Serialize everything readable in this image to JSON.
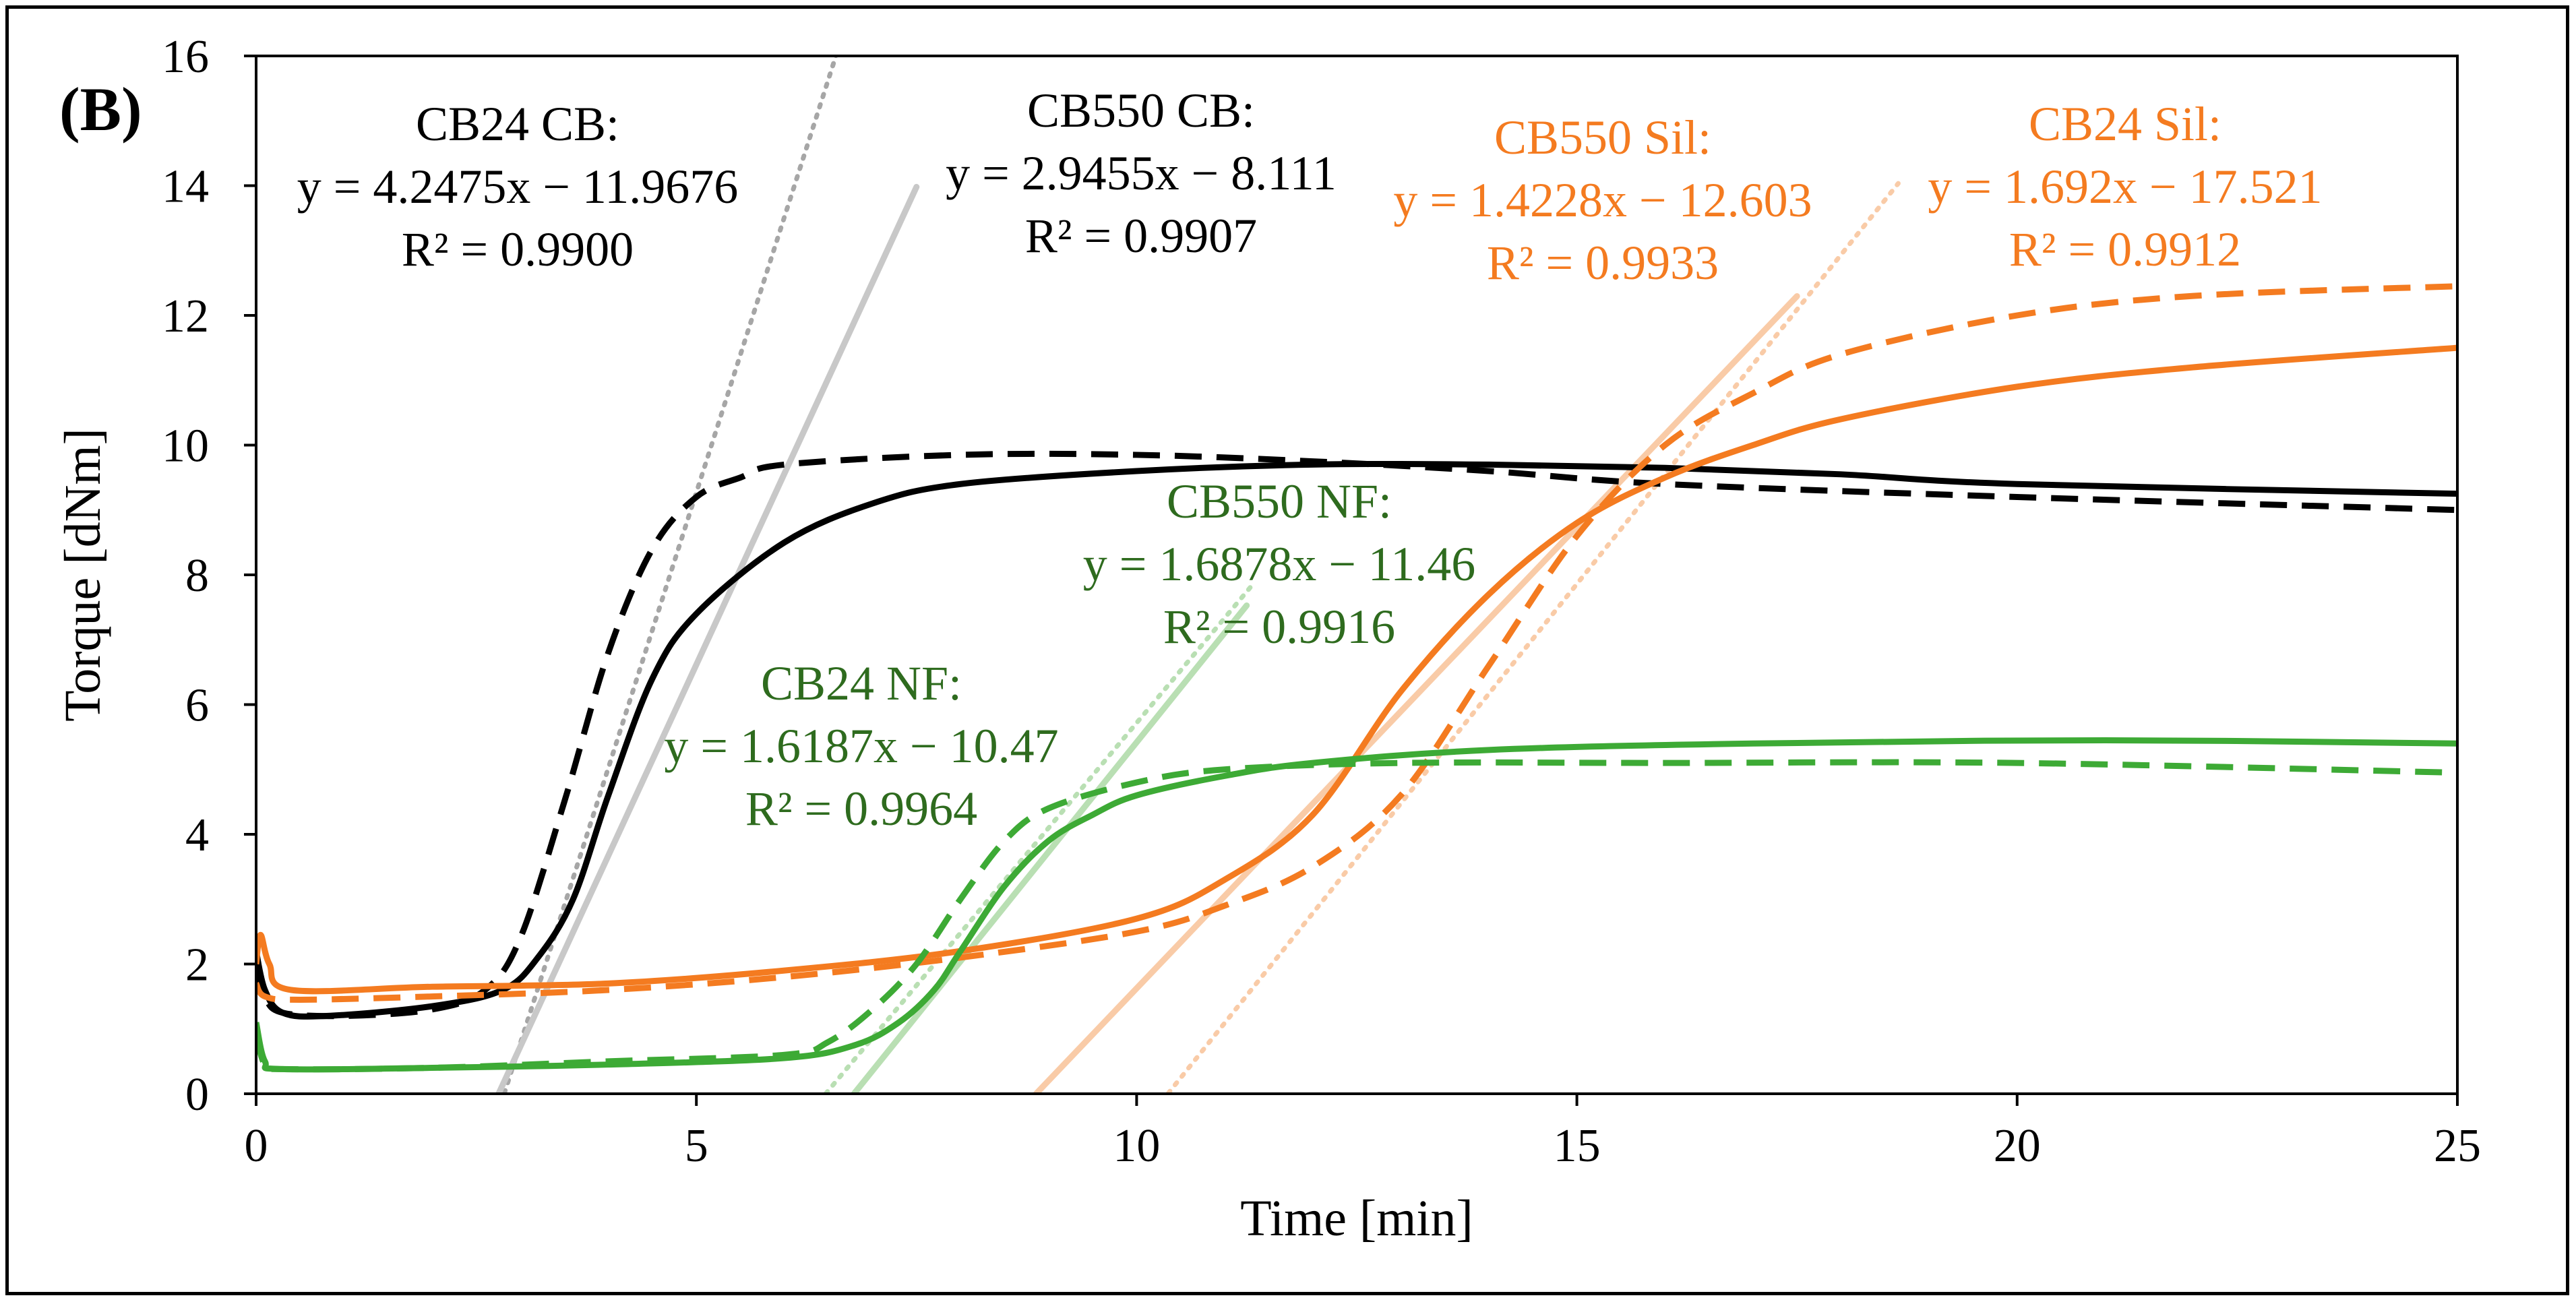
{
  "chart_data": {
    "type": "line",
    "panel_label": "(B)",
    "xlabel": "Time [min]",
    "ylabel": "Torque [dNm]",
    "xlim": [
      0,
      25
    ],
    "ylim": [
      0,
      16
    ],
    "xticks": [
      0,
      5,
      10,
      15,
      20,
      25
    ],
    "yticks": [
      0,
      2,
      4,
      6,
      8,
      10,
      12,
      14,
      16
    ],
    "grid": false,
    "legend": "none",
    "colors": {
      "black": "#000000",
      "orange": "#F47B20",
      "green": "#3DAA35",
      "annot_green": "#2E6B1E",
      "gray": "#A6A6A6",
      "gray_light": "#C8C8C8",
      "orange_light": "#F9CBA7",
      "green_light": "#B9DFB3"
    },
    "series": [
      {
        "color": "#000000",
        "dash": "solid",
        "points": [
          [
            0,
            2.2
          ],
          [
            0.1,
            1.6
          ],
          [
            0.3,
            1.25
          ],
          [
            0.8,
            1.2
          ],
          [
            2,
            1.35
          ],
          [
            2.8,
            1.6
          ],
          [
            3.2,
            2.1
          ],
          [
            3.6,
            3.0
          ],
          [
            4.0,
            4.6
          ],
          [
            4.5,
            6.4
          ],
          [
            5.0,
            7.4
          ],
          [
            6.0,
            8.5
          ],
          [
            7.0,
            9.1
          ],
          [
            8.0,
            9.4
          ],
          [
            10,
            9.6
          ],
          [
            12,
            9.7
          ],
          [
            14,
            9.7
          ],
          [
            16,
            9.65
          ],
          [
            18,
            9.55
          ],
          [
            20,
            9.4
          ],
          [
            25,
            9.25
          ]
        ]
      },
      {
        "color": "#000000",
        "dash": "dashed",
        "points": [
          [
            0,
            2.0
          ],
          [
            0.1,
            1.5
          ],
          [
            0.3,
            1.25
          ],
          [
            1,
            1.2
          ],
          [
            2,
            1.3
          ],
          [
            2.6,
            1.6
          ],
          [
            3.0,
            2.4
          ],
          [
            3.5,
            4.5
          ],
          [
            4.0,
            6.8
          ],
          [
            4.5,
            8.4
          ],
          [
            5.0,
            9.2
          ],
          [
            5.5,
            9.5
          ],
          [
            6,
            9.7
          ],
          [
            8,
            9.85
          ],
          [
            10,
            9.85
          ],
          [
            12,
            9.75
          ],
          [
            14,
            9.6
          ],
          [
            16,
            9.4
          ],
          [
            20,
            9.2
          ],
          [
            25,
            9.0
          ]
        ]
      },
      {
        "color": "#F47B20",
        "dash": "solid",
        "points": [
          [
            0,
            2.0
          ],
          [
            0.05,
            2.45
          ],
          [
            0.15,
            2.0
          ],
          [
            0.4,
            1.6
          ],
          [
            2,
            1.65
          ],
          [
            4,
            1.7
          ],
          [
            6,
            1.9
          ],
          [
            8,
            2.2
          ],
          [
            10,
            2.7
          ],
          [
            11,
            3.3
          ],
          [
            12,
            4.3
          ],
          [
            13,
            6.2
          ],
          [
            14,
            7.7
          ],
          [
            15,
            8.8
          ],
          [
            16,
            9.5
          ],
          [
            17,
            10.0
          ],
          [
            18,
            10.4
          ],
          [
            20,
            10.9
          ],
          [
            22,
            11.2
          ],
          [
            25,
            11.5
          ]
        ]
      },
      {
        "color": "#F47B20",
        "dash": "dashed",
        "points": [
          [
            0,
            1.7
          ],
          [
            0.1,
            1.5
          ],
          [
            0.5,
            1.45
          ],
          [
            2,
            1.5
          ],
          [
            4,
            1.6
          ],
          [
            6,
            1.8
          ],
          [
            8,
            2.1
          ],
          [
            10,
            2.5
          ],
          [
            11,
            2.9
          ],
          [
            12,
            3.5
          ],
          [
            13,
            4.6
          ],
          [
            14,
            6.6
          ],
          [
            15,
            8.6
          ],
          [
            16,
            10.0
          ],
          [
            17,
            10.8
          ],
          [
            18,
            11.4
          ],
          [
            20,
            12.0
          ],
          [
            22,
            12.3
          ],
          [
            25,
            12.45
          ]
        ]
      },
      {
        "color": "#3DAA35",
        "dash": "solid",
        "points": [
          [
            0,
            1.1
          ],
          [
            0.1,
            0.5
          ],
          [
            0.3,
            0.38
          ],
          [
            2,
            0.4
          ],
          [
            4,
            0.45
          ],
          [
            6,
            0.55
          ],
          [
            6.8,
            0.75
          ],
          [
            7.3,
            1.1
          ],
          [
            7.7,
            1.6
          ],
          [
            8.0,
            2.2
          ],
          [
            8.5,
            3.2
          ],
          [
            9.0,
            3.9
          ],
          [
            9.5,
            4.3
          ],
          [
            10,
            4.6
          ],
          [
            11,
            4.9
          ],
          [
            12,
            5.1
          ],
          [
            14,
            5.3
          ],
          [
            17,
            5.4
          ],
          [
            21,
            5.45
          ],
          [
            25,
            5.4
          ]
        ]
      },
      {
        "color": "#3DAA35",
        "dash": "dashed",
        "points": [
          [
            0,
            0.9
          ],
          [
            0.1,
            0.45
          ],
          [
            0.3,
            0.38
          ],
          [
            2,
            0.4
          ],
          [
            4,
            0.5
          ],
          [
            6,
            0.6
          ],
          [
            6.5,
            0.8
          ],
          [
            7,
            1.3
          ],
          [
            7.5,
            2.0
          ],
          [
            8.0,
            3.0
          ],
          [
            8.5,
            3.9
          ],
          [
            9.0,
            4.4
          ],
          [
            10,
            4.8
          ],
          [
            11,
            5.0
          ],
          [
            13,
            5.1
          ],
          [
            16,
            5.1
          ],
          [
            20,
            5.1
          ],
          [
            25,
            4.95
          ]
        ]
      }
    ],
    "trendlines": [
      {
        "name": "CB24 CB",
        "color": "#A6A6A6",
        "dash": "dotted",
        "slope": 4.2475,
        "intercept": -11.9676,
        "x": [
          2.82,
          6.59
        ]
      },
      {
        "name": "CB550 CB",
        "color": "#C8C8C8",
        "dash": "solid",
        "slope": 2.9455,
        "intercept": -8.111,
        "x": [
          2.75,
          7.5
        ]
      },
      {
        "name": "CB550 Sil",
        "color": "#F9CBA7",
        "dash": "solid",
        "slope": 1.4228,
        "intercept": -12.603,
        "x": [
          8.86,
          17.5
        ]
      },
      {
        "name": "CB24 Sil",
        "color": "#F9CBA7",
        "dash": "dotted",
        "slope": 1.692,
        "intercept": -17.521,
        "x": [
          10.36,
          18.65
        ]
      },
      {
        "name": "CB550 NF",
        "color": "#B9DFB3",
        "dash": "solid",
        "slope": 1.6878,
        "intercept": -11.46,
        "x": [
          6.79,
          11.25
        ]
      },
      {
        "name": "CB24 NF",
        "color": "#B9DFB3",
        "dash": "dotted",
        "slope": 1.6187,
        "intercept": -10.47,
        "x": [
          6.47,
          11.3
        ]
      }
    ],
    "annotations": [
      {
        "id": "cb24cb",
        "color": "#000000",
        "lines": [
          "CB24 CB:",
          "y = 4.2475x − 11.9676",
          "R² = 0.9900"
        ]
      },
      {
        "id": "cb550cb",
        "color": "#000000",
        "lines": [
          "CB550 CB:",
          "y = 2.9455x − 8.111",
          "R² = 0.9907"
        ]
      },
      {
        "id": "cb550sil",
        "color": "#F47B20",
        "lines": [
          "CB550 Sil:",
          "y = 1.4228x − 12.603",
          "R² = 0.9933"
        ]
      },
      {
        "id": "cb24sil",
        "color": "#F47B20",
        "lines": [
          "CB24 Sil:",
          "y = 1.692x − 17.521",
          "R² = 0.9912"
        ]
      },
      {
        "id": "cb550nf",
        "color": "#2E6B1E",
        "lines": [
          "CB550 NF:",
          "y = 1.6878x − 11.46",
          "R² = 0.9916"
        ]
      },
      {
        "id": "cb24nf",
        "color": "#2E6B1E",
        "lines": [
          "CB24 NF:",
          "y = 1.6187x − 10.47",
          "R² = 0.9964"
        ]
      }
    ]
  }
}
